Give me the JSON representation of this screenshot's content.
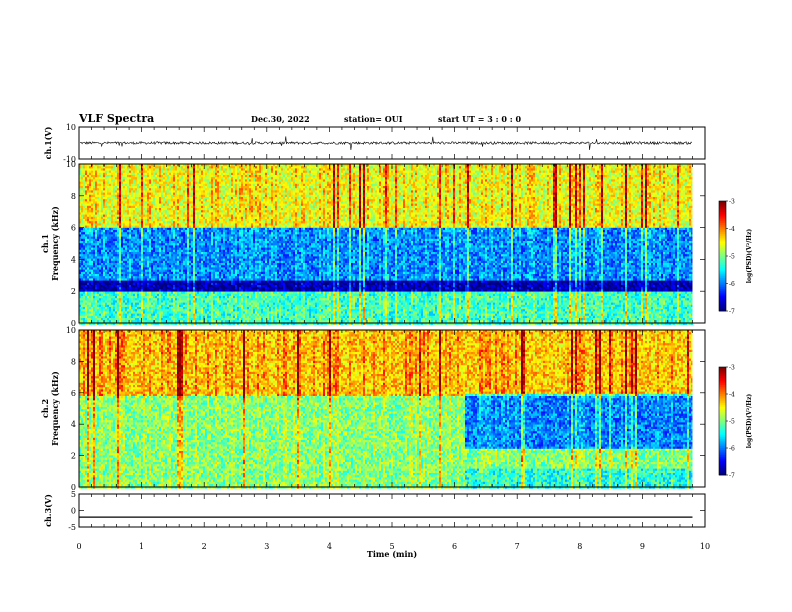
{
  "header": {
    "title": "VLF Spectra",
    "date": "Dec.30, 2022",
    "station": "station= OUI",
    "start": "start  UT =  3 : 0 : 0"
  },
  "chart_data": [
    {
      "type": "line",
      "panel": "ch1-waveform",
      "ylabel": "ch.1(V)",
      "ylim": [
        -10,
        10
      ],
      "yticks": [
        "10",
        "-10"
      ],
      "xlim": [
        0,
        10
      ],
      "series": [
        {
          "values_description_mean": 0,
          "typical_amplitude": 1,
          "color": "#000000"
        }
      ]
    },
    {
      "type": "heatmap",
      "panel": "ch1-spectrogram",
      "ylabel": "ch.1",
      "ylabel2": "Frequency  (kHz)",
      "ylim": [
        0,
        10
      ],
      "yticks": [
        "0",
        "2",
        "4",
        "6",
        "8",
        "10"
      ],
      "xlim": [
        0,
        10
      ],
      "data_end_x": 9.8,
      "colorbar": {
        "label": "log(PSD)(V²/Hz)",
        "range": [
          -7,
          -3
        ],
        "ticks": [
          "-3",
          "-4",
          "-5",
          "-6",
          "-7"
        ]
      },
      "bands": [
        {
          "f_lo": 0,
          "f_hi": 2.0,
          "level": -5.3
        },
        {
          "f_lo": 2.0,
          "f_hi": 2.8,
          "level": -6.9
        },
        {
          "f_lo": 2.8,
          "f_hi": 6.0,
          "level": -6.0
        },
        {
          "f_lo": 6.0,
          "f_hi": 10,
          "level": -4.6
        }
      ]
    },
    {
      "type": "heatmap",
      "panel": "ch2-spectrogram",
      "ylabel": "ch.2",
      "ylabel2": "Frequency  (kHz)",
      "ylim": [
        0,
        10
      ],
      "yticks": [
        "0",
        "2",
        "4",
        "6",
        "8",
        "10"
      ],
      "xlim": [
        0,
        10
      ],
      "data_end_x": 9.8,
      "colorbar": {
        "label": "log(PSD)(V²/Hz)",
        "range": [
          -7,
          -3
        ],
        "ticks": [
          "-3",
          "-4",
          "-5",
          "-6",
          "-7"
        ]
      },
      "bands": [
        {
          "f_lo": 0,
          "f_hi": 5.8,
          "level": -5.0
        },
        {
          "f_lo": 5.8,
          "f_hi": 10,
          "level": -4.3
        }
      ],
      "change_at_x": 6.15
    },
    {
      "type": "line",
      "panel": "ch3-waveform",
      "ylabel": "ch.3(V)",
      "ylim": [
        -5,
        5
      ],
      "yticks": [
        "5",
        "0",
        "-5"
      ],
      "xlim": [
        0,
        10
      ],
      "xlabel": "Time  (min)",
      "xticks": [
        "0",
        "1",
        "2",
        "3",
        "4",
        "5",
        "6",
        "7",
        "8",
        "9",
        "10"
      ],
      "series": [
        {
          "constant": -2,
          "color": "#000000"
        }
      ]
    }
  ]
}
